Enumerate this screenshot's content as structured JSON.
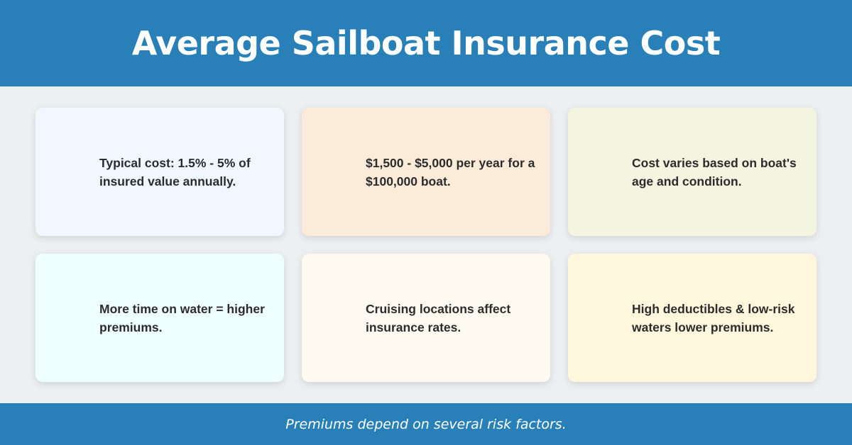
{
  "header": {
    "title": "Average Sailboat Insurance Cost"
  },
  "cards": [
    {
      "text": "Typical cost: 1.5% - 5% of insured value annually.",
      "bg": "#f0f7ff"
    },
    {
      "text": "$1,500 - $5,000 per year for a $100,000 boat.",
      "bg": "#fbebd9"
    },
    {
      "text": "Cost varies based on boat's age and condition.",
      "bg": "#f3f5e0"
    },
    {
      "text": "More time on water = higher premiums.",
      "bg": "#effffd"
    },
    {
      "text": "Cruising locations affect insurance rates.",
      "bg": "#fffaf1"
    },
    {
      "text": "High deductibles & low-risk waters lower premiums.",
      "bg": "#fff7dd"
    }
  ],
  "footer": {
    "text": "Premiums depend on several risk factors."
  },
  "colors": {
    "accent": "#2980b9",
    "background": "#ecf0f1",
    "text": "#2c2c2c"
  }
}
